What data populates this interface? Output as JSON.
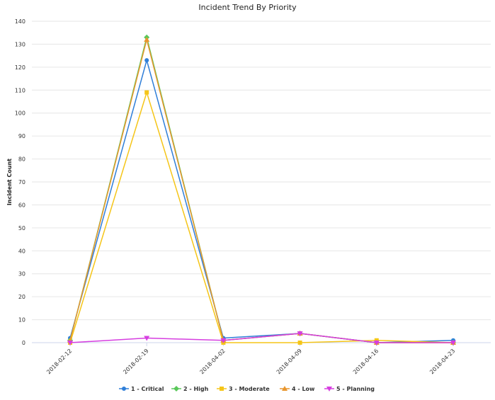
{
  "chart_data": {
    "type": "line",
    "title": "Incident Trend By Priority",
    "xlabel": "",
    "ylabel": "Incident Count",
    "categories": [
      "2018-02-12",
      "2018-02-19",
      "2018-04-02",
      "2018-04-09",
      "2018-04-16",
      "2018-04-23"
    ],
    "ylim": [
      0,
      140
    ],
    "yticks": [
      0,
      10,
      20,
      30,
      40,
      50,
      60,
      70,
      80,
      90,
      100,
      110,
      120,
      130,
      140
    ],
    "grid": true,
    "legend_position": "bottom-center",
    "series": [
      {
        "name": "1 - Critical",
        "color": "#2f7ed8",
        "marker": "circle",
        "values": [
          2,
          123,
          2,
          4,
          0,
          1
        ]
      },
      {
        "name": "2 - High",
        "color": "#5ac85a",
        "marker": "diamond",
        "values": [
          1,
          133,
          1,
          4,
          0,
          0
        ]
      },
      {
        "name": "3 - Moderate",
        "color": "#f5c518",
        "marker": "square",
        "values": [
          0,
          109,
          0,
          0,
          1,
          0
        ]
      },
      {
        "name": "4 - Low",
        "color": "#e8962e",
        "marker": "triangle",
        "values": [
          1,
          132,
          1,
          4,
          0,
          0
        ]
      },
      {
        "name": "5 - Planning",
        "color": "#d63ee0",
        "marker": "triangle-down",
        "values": [
          0,
          2,
          1,
          4,
          0,
          0
        ]
      }
    ]
  }
}
